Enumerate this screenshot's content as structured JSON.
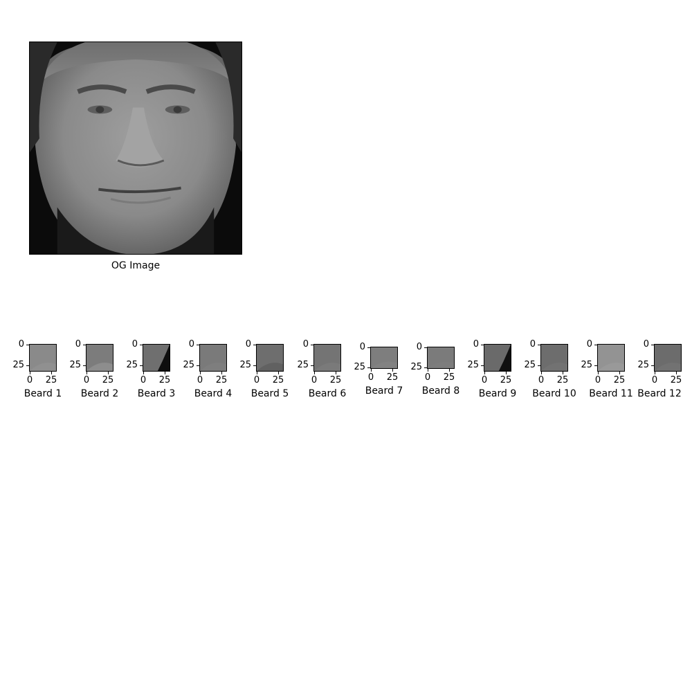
{
  "main": {
    "title": "OG Image"
  },
  "panels": [
    {
      "title": "Beard 1",
      "yticks": [
        "0",
        "25"
      ],
      "xticks": [
        "0",
        "25"
      ],
      "tone": "#8a8a8a",
      "accent": "#959595",
      "short": false
    },
    {
      "title": "Beard 2",
      "yticks": [
        "0",
        "25"
      ],
      "xticks": [
        "0",
        "25"
      ],
      "tone": "#7c7c7c",
      "accent": "#9a9a9a",
      "short": false
    },
    {
      "title": "Beard 3",
      "yticks": [
        "0",
        "25"
      ],
      "xticks": [
        "0",
        "25"
      ],
      "tone": "#6f6f6f",
      "accent": "#0e0e0e",
      "short": false
    },
    {
      "title": "Beard 4",
      "yticks": [
        "0",
        "25"
      ],
      "xticks": [
        "0",
        "25"
      ],
      "tone": "#7a7a7a",
      "accent": "#818181",
      "short": false
    },
    {
      "title": "Beard 5",
      "yticks": [
        "0",
        "25"
      ],
      "xticks": [
        "0",
        "25"
      ],
      "tone": "#6e6e6e",
      "accent": "#595959",
      "short": false
    },
    {
      "title": "Beard 6",
      "yticks": [
        "0",
        "25"
      ],
      "xticks": [
        "0",
        "25"
      ],
      "tone": "#747474",
      "accent": "#7f7f7f",
      "short": false
    },
    {
      "title": "Beard 7",
      "yticks": [
        "0",
        "25"
      ],
      "xticks": [
        "0",
        "25"
      ],
      "tone": "#7e7e7e",
      "accent": "#868686",
      "short": true
    },
    {
      "title": "Beard 8",
      "yticks": [
        "0",
        "25"
      ],
      "xticks": [
        "0",
        "25"
      ],
      "tone": "#7b7b7b",
      "accent": "#7f7f7f",
      "short": true
    },
    {
      "title": "Beard 9",
      "yticks": [
        "0",
        "25"
      ],
      "xticks": [
        "0",
        "25"
      ],
      "tone": "#6a6a6a",
      "accent": "#101010",
      "short": false
    },
    {
      "title": "Beard 10",
      "yticks": [
        "0",
        "25"
      ],
      "xticks": [
        "0",
        "25"
      ],
      "tone": "#6d6d6d",
      "accent": "#767676",
      "short": false
    },
    {
      "title": "Beard 11",
      "yticks": [
        "0",
        "25"
      ],
      "xticks": [
        "0",
        "25"
      ],
      "tone": "#939393",
      "accent": "#9c9c9c",
      "short": false
    },
    {
      "title": "Beard 12",
      "yticks": [
        "0",
        "25"
      ],
      "xticks": [
        "0",
        "25"
      ],
      "tone": "#6c6c6c",
      "accent": "#777777",
      "short": false
    }
  ]
}
